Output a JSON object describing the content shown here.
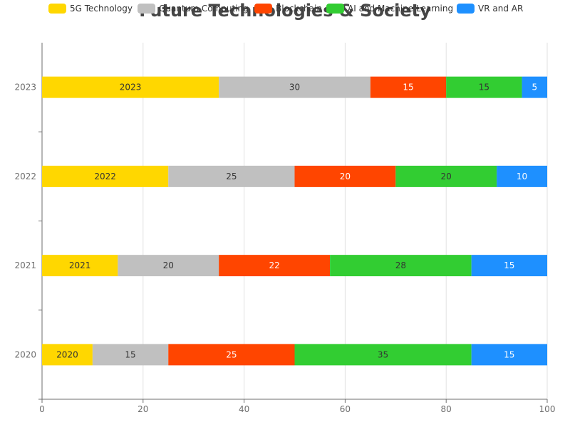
{
  "chart_data": {
    "type": "bar",
    "orientation": "horizontal",
    "stacked": true,
    "title": "Future Technologies & Society",
    "categories": [
      "2020",
      "2021",
      "2022",
      "2023"
    ],
    "series": [
      {
        "name": "5G Technology",
        "values": [
          10,
          15,
          25,
          35
        ],
        "labels": [
          "2020",
          "2021",
          "2022",
          "2023"
        ],
        "color": "#FFD700",
        "label_color": "#333333"
      },
      {
        "name": "Quantum Computing",
        "values": [
          15,
          20,
          25,
          30
        ],
        "labels": [
          "15",
          "20",
          "25",
          "30"
        ],
        "color": "#C0C0C0",
        "label_color": "#333333"
      },
      {
        "name": "Blockchain",
        "values": [
          25,
          22,
          20,
          15
        ],
        "labels": [
          "25",
          "22",
          "20",
          "15"
        ],
        "color": "#FF4500",
        "label_color": "#ffffff"
      },
      {
        "name": "AI and Machine Learning",
        "values": [
          35,
          28,
          20,
          15
        ],
        "labels": [
          "35",
          "28",
          "20",
          "15"
        ],
        "color": "#32CD32",
        "label_color": "#333333"
      },
      {
        "name": "VR and AR",
        "values": [
          15,
          15,
          10,
          5
        ],
        "labels": [
          "15",
          "15",
          "10",
          "5"
        ],
        "color": "#1E90FF",
        "label_color": "#ffffff"
      }
    ],
    "xlim": [
      0,
      100
    ],
    "x_ticks": [
      "0",
      "20",
      "40",
      "60",
      "80",
      "100"
    ],
    "grid": true,
    "legend_position": "top-center"
  }
}
